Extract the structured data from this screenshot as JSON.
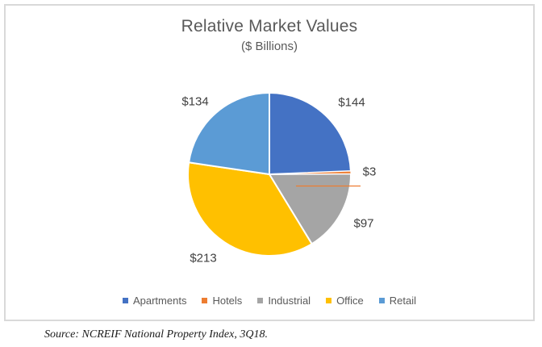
{
  "chart_data": {
    "type": "pie",
    "title": "Relative Market Values",
    "subtitle": "($ Billions)",
    "legend_position": "bottom",
    "direction": "clockwise",
    "start_angle_deg": 0,
    "slices": [
      {
        "name": "Apartments",
        "value": 144,
        "label": "$144",
        "color": "#4472C4"
      },
      {
        "name": "Hotels",
        "value": 3,
        "label": "$3",
        "color": "#ED7D31"
      },
      {
        "name": "Industrial",
        "value": 97,
        "label": "$97",
        "color": "#A5A5A5"
      },
      {
        "name": "Office",
        "value": 213,
        "label": "$213",
        "color": "#FFC000"
      },
      {
        "name": "Retail",
        "value": 134,
        "label": "$134",
        "color": "#5B9BD5"
      }
    ]
  },
  "frame_border_color": "#D9D9D9",
  "source_note": "Source: NCREIF National Property Index, 3Q18."
}
